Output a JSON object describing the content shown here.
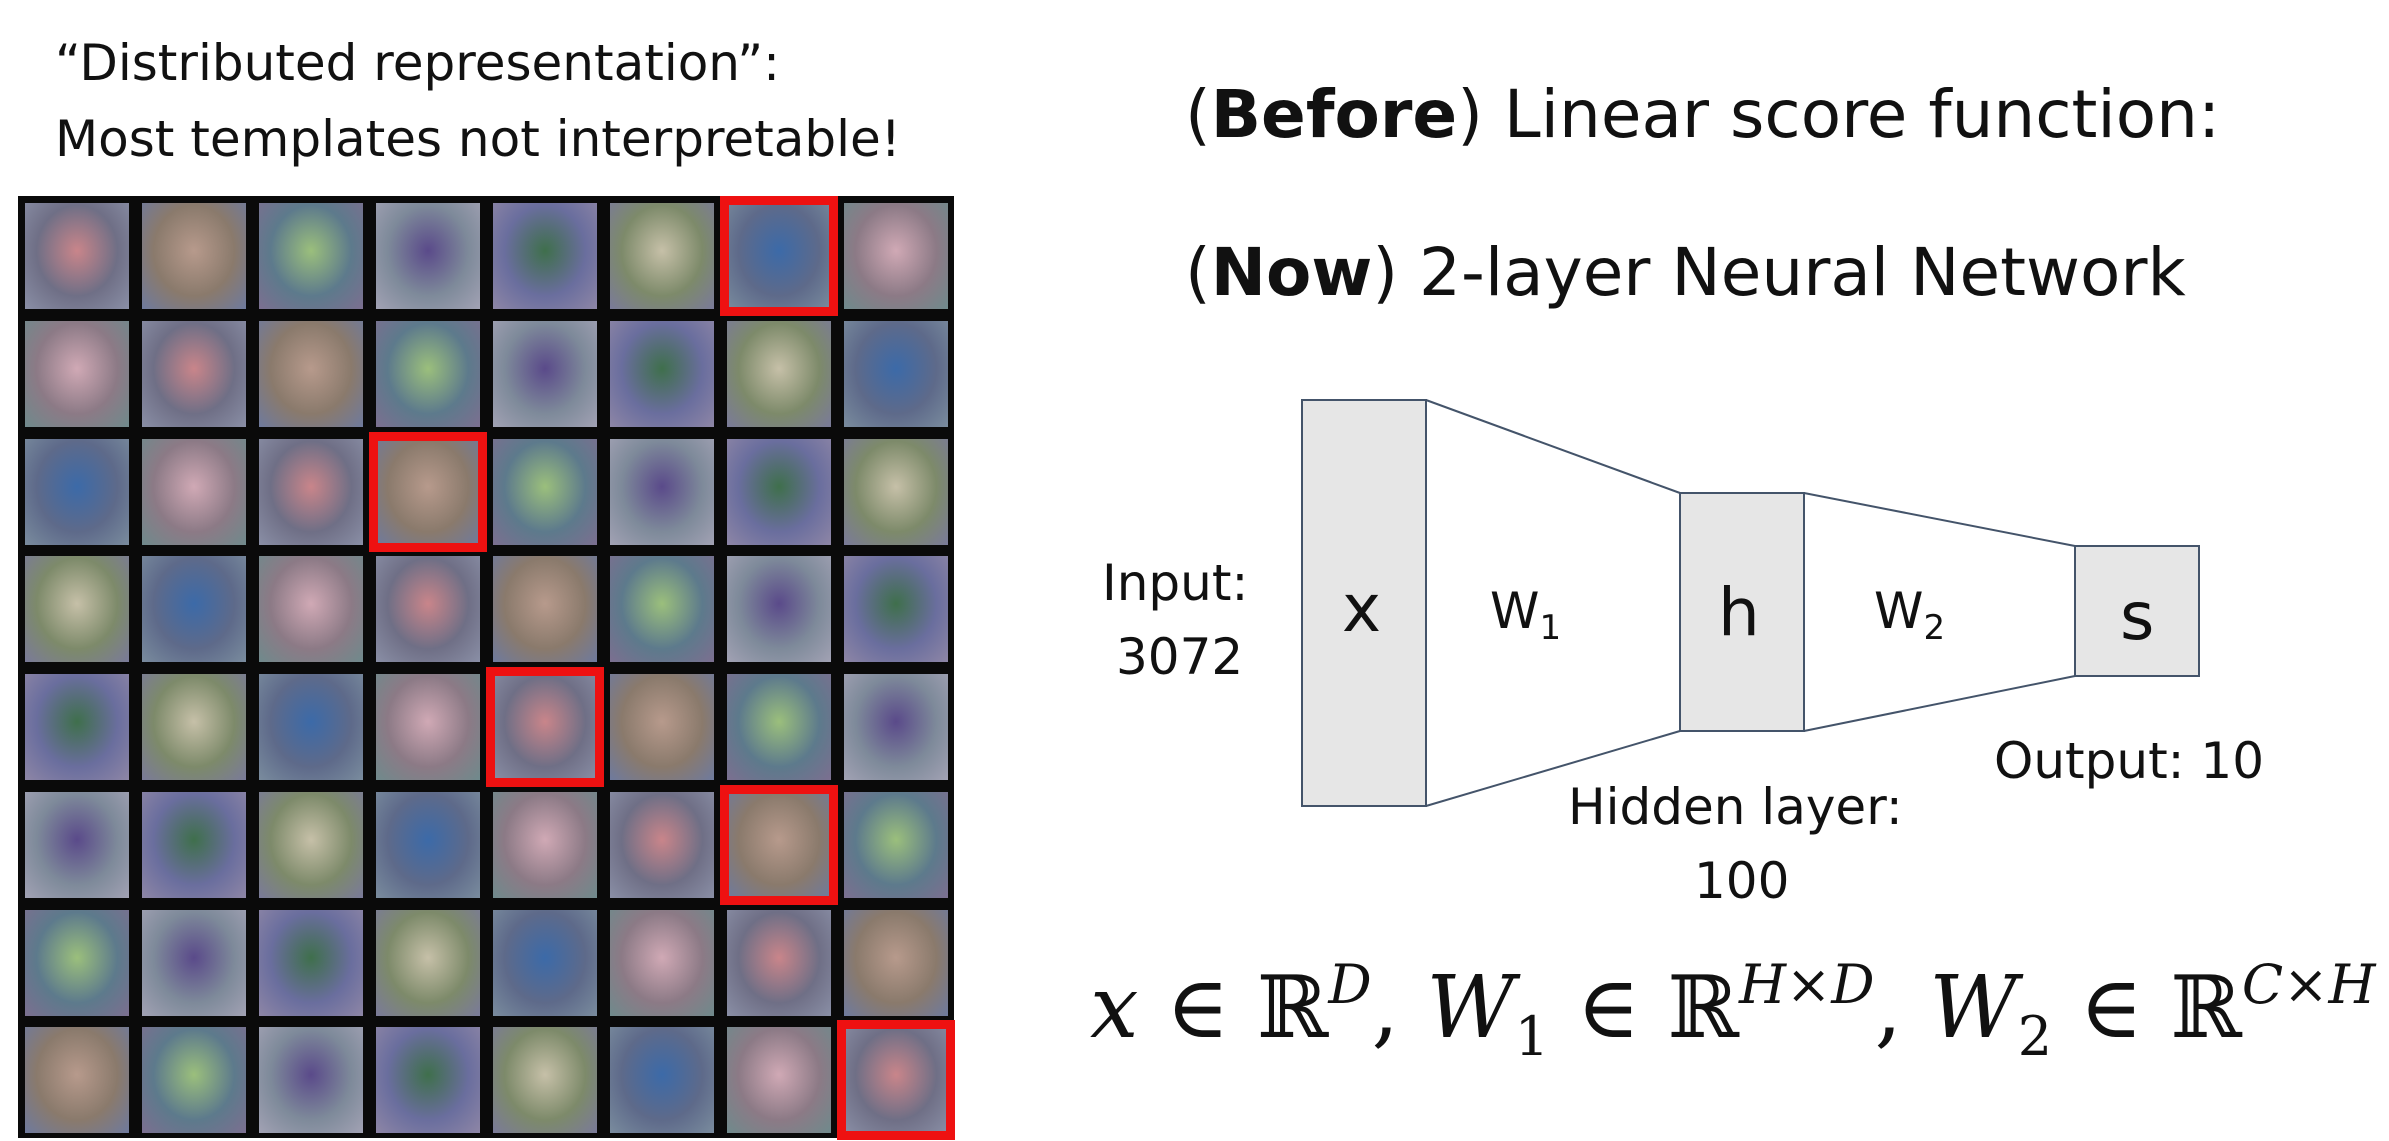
{
  "left_caption": {
    "line1": "“Distributed representation”:",
    "line2": "Most templates not interpretable!"
  },
  "template_grid": {
    "rows": 8,
    "cols": 8,
    "highlighted_cells": [
      [
        0,
        6
      ],
      [
        2,
        3
      ],
      [
        4,
        4
      ],
      [
        5,
        6
      ],
      [
        7,
        7
      ]
    ],
    "highlight_color": "#ee1111"
  },
  "title_before": {
    "bold": "Before",
    "rest": ") Linear score function:"
  },
  "title_now": {
    "bold": "Now",
    "rest": ") 2-layer Neural Network"
  },
  "network": {
    "input_node": "x",
    "hidden_node": "h",
    "output_node": "s",
    "w1_base": "W",
    "w1_sub": "1",
    "w2_base": "W",
    "w2_sub": "2",
    "input_label_1": "Input:",
    "input_label_2": "3072",
    "hidden_label_1": "Hidden layer:",
    "hidden_label_2": "100",
    "output_label": "Output: 10",
    "node_fill": "#e6e6e6",
    "line_color": "#44546a"
  },
  "equation": {
    "x": "x",
    "in": "∈",
    "R": "ℝ",
    "D": "D",
    "W": "W",
    "one": "1",
    "two": "2",
    "HxD": "H×D",
    "CxH": "C×H",
    "comma": ","
  }
}
